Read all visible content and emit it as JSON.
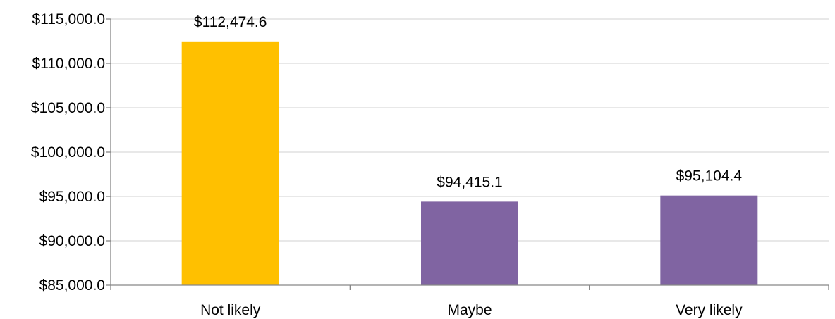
{
  "chart_data": {
    "type": "bar",
    "title": "",
    "xlabel": "",
    "ylabel": "",
    "categories": [
      "Not likely",
      "Maybe",
      "Very likely"
    ],
    "values": [
      112474.6,
      94415.1,
      95104.4
    ],
    "data_labels": [
      "$112,474.6",
      "$94,415.1",
      "$95,104.4"
    ],
    "bar_colors": [
      "#FFC000",
      "#8064A2",
      "#8064A2"
    ],
    "ylim": [
      85000,
      115000
    ],
    "yticks": [
      85000,
      90000,
      95000,
      100000,
      105000,
      110000,
      115000
    ],
    "ytick_labels": [
      "$85,000.0",
      "$90,000.0",
      "$95,000.0",
      "$100,000.0",
      "$105,000.0",
      "$110,000.0",
      "$115,000.0"
    ],
    "grid": true,
    "legend": "none",
    "colors": {
      "grid": "#D9D9D9",
      "axis": "#868686",
      "text": "#000000"
    }
  }
}
